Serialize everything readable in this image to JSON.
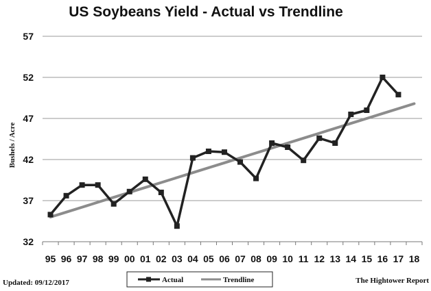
{
  "chart_data": {
    "type": "line",
    "title": "US Soybeans Yield - Actual vs Trendline",
    "ylabel": "Bushels / Acre",
    "xlabel": "",
    "categories": [
      "95",
      "96",
      "97",
      "98",
      "99",
      "00",
      "01",
      "02",
      "03",
      "04",
      "05",
      "06",
      "07",
      "08",
      "09",
      "10",
      "11",
      "12",
      "13",
      "14",
      "15",
      "16",
      "17",
      "18"
    ],
    "ylim": [
      32,
      57
    ],
    "yticks": [
      32,
      37,
      42,
      47,
      52,
      57
    ],
    "grid": true,
    "legend_position": "bottom",
    "series": [
      {
        "name": "Actual",
        "color": "#222222",
        "marker": "square",
        "values": [
          35.3,
          37.6,
          38.9,
          38.9,
          36.6,
          38.1,
          39.6,
          38.0,
          33.9,
          42.2,
          43.0,
          42.9,
          41.7,
          39.7,
          44.0,
          43.5,
          41.9,
          44.6,
          44.0,
          47.5,
          48.0,
          52.0,
          49.9,
          null
        ]
      },
      {
        "name": "Trendline",
        "color": "#8c8c8c",
        "marker": "none",
        "values": [
          35.0,
          35.6,
          36.2,
          36.8,
          37.4,
          38.0,
          38.6,
          39.2,
          39.8,
          40.4,
          41.0,
          41.6,
          42.2,
          42.8,
          43.4,
          44.0,
          44.6,
          45.2,
          45.8,
          46.4,
          47.0,
          47.6,
          48.2,
          48.8
        ]
      }
    ]
  },
  "footer": {
    "updated": "Updated:  09/12/2017",
    "source": "The Hightower Report"
  }
}
